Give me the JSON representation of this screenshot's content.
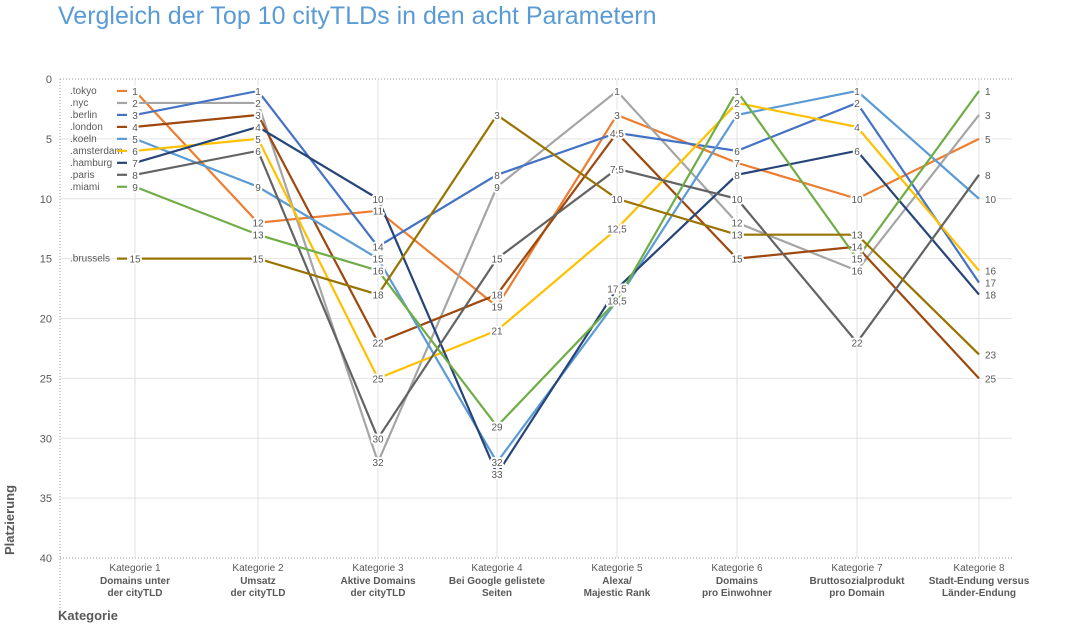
{
  "title": "Vergleich der Top 10 cityTLDs in den acht Parametern",
  "chart_data": {
    "type": "line",
    "title": "Vergleich der Top 10 cityTLDs in den acht Parametern",
    "xlabel": "Kategorie",
    "ylabel": "Platzierung",
    "ylim": [
      0,
      40
    ],
    "y_reversed": true,
    "yticks": [
      0,
      5,
      10,
      15,
      20,
      25,
      30,
      35,
      40
    ],
    "grid": true,
    "legend": "top-left",
    "categories": [
      {
        "head": "Kategorie 1",
        "sub": [
          "Domains unter",
          "der cityTLD"
        ]
      },
      {
        "head": "Kategorie 2",
        "sub": [
          "Umsatz",
          "der cityTLD"
        ]
      },
      {
        "head": "Kategorie 3",
        "sub": [
          "Aktive Domains",
          "der cityTLD"
        ]
      },
      {
        "head": "Kategorie 4",
        "sub": [
          "Bei Google gelistete",
          "Seiten"
        ]
      },
      {
        "head": "Kategorie 5",
        "sub": [
          "Alexa/",
          "Majestic Rank"
        ]
      },
      {
        "head": "Kategorie 6",
        "sub": [
          "Domains",
          "pro Einwohner"
        ]
      },
      {
        "head": "Kategorie 7",
        "sub": [
          "Bruttosozialprodukt",
          "pro Domain"
        ]
      },
      {
        "head": "Kategorie 8",
        "sub": [
          "Stadt-Endung versus",
          "Länder-Endung"
        ]
      }
    ],
    "series": [
      {
        "name": ".tokyo",
        "color": "#ED7D31",
        "values": [
          1,
          12,
          11,
          19,
          3,
          7,
          10,
          5
        ]
      },
      {
        "name": ".nyc",
        "color": "#A5A5A5",
        "values": [
          2,
          2,
          32,
          9,
          1,
          12,
          16,
          3
        ]
      },
      {
        "name": ".berlin",
        "color": "#4472C4",
        "values": [
          3,
          1,
          14,
          8,
          4.5,
          6,
          2,
          17
        ]
      },
      {
        "name": ".london",
        "color": "#9E480E",
        "values": [
          4,
          3,
          22,
          18,
          4.5,
          15,
          14,
          25
        ]
      },
      {
        "name": ".koeln",
        "color": "#5B9BD5",
        "values": [
          5,
          9,
          15,
          32,
          18.5,
          3,
          1,
          10
        ]
      },
      {
        "name": ".amsterdam",
        "color": "#FFC000",
        "values": [
          6,
          5,
          25,
          21,
          12.5,
          2,
          4,
          16
        ]
      },
      {
        "name": ".hamburg",
        "color": "#264478",
        "values": [
          7,
          4,
          10,
          33,
          17.5,
          8,
          6,
          18
        ]
      },
      {
        "name": ".paris",
        "color": "#636363",
        "values": [
          8,
          6,
          30,
          15,
          7.5,
          10,
          22,
          8
        ]
      },
      {
        "name": ".miami",
        "color": "#70AD47",
        "values": [
          9,
          13,
          16,
          29,
          18.5,
          1,
          15,
          1
        ]
      },
      {
        "name": ".brussels",
        "color": "#997300",
        "values": [
          15,
          15,
          18,
          3,
          10,
          13,
          13,
          23
        ]
      }
    ]
  }
}
